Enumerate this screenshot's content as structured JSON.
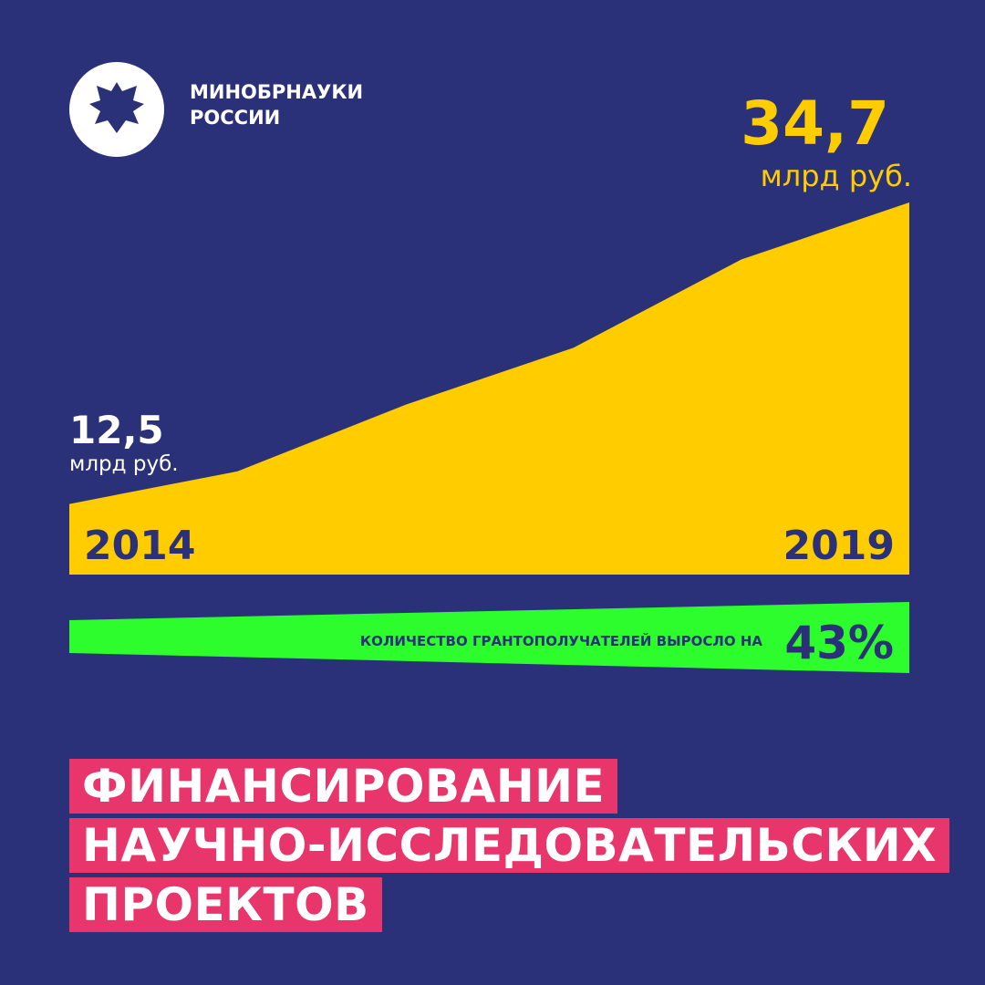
{
  "header": {
    "org_line1": "МИНОБРНАУКИ",
    "org_line2": "РОССИИ"
  },
  "chart_data": {
    "type": "area",
    "categories": [
      "2014",
      null,
      null,
      null,
      null,
      "2019"
    ],
    "values": [
      12.5,
      14.9,
      19.8,
      24.0,
      30.5,
      34.7
    ],
    "value_labels": [
      "12,5",
      null,
      null,
      null,
      null,
      "34,7"
    ],
    "unit": "млрд руб.",
    "color": "#ffcc00",
    "ylim": [
      7.3,
      34.7
    ]
  },
  "growth": {
    "text": "КОЛИЧЕСТВО ГРАНТОПОЛУЧАТЕЛЕЙ ВЫРОСЛО НА",
    "label": "43%"
  },
  "title": [
    "ФИНАНСИРОВАНИЕ",
    "НАУЧНО-ИССЛЕДОВАТЕЛЬСКИХ",
    "ПРОЕКТОВ"
  ]
}
